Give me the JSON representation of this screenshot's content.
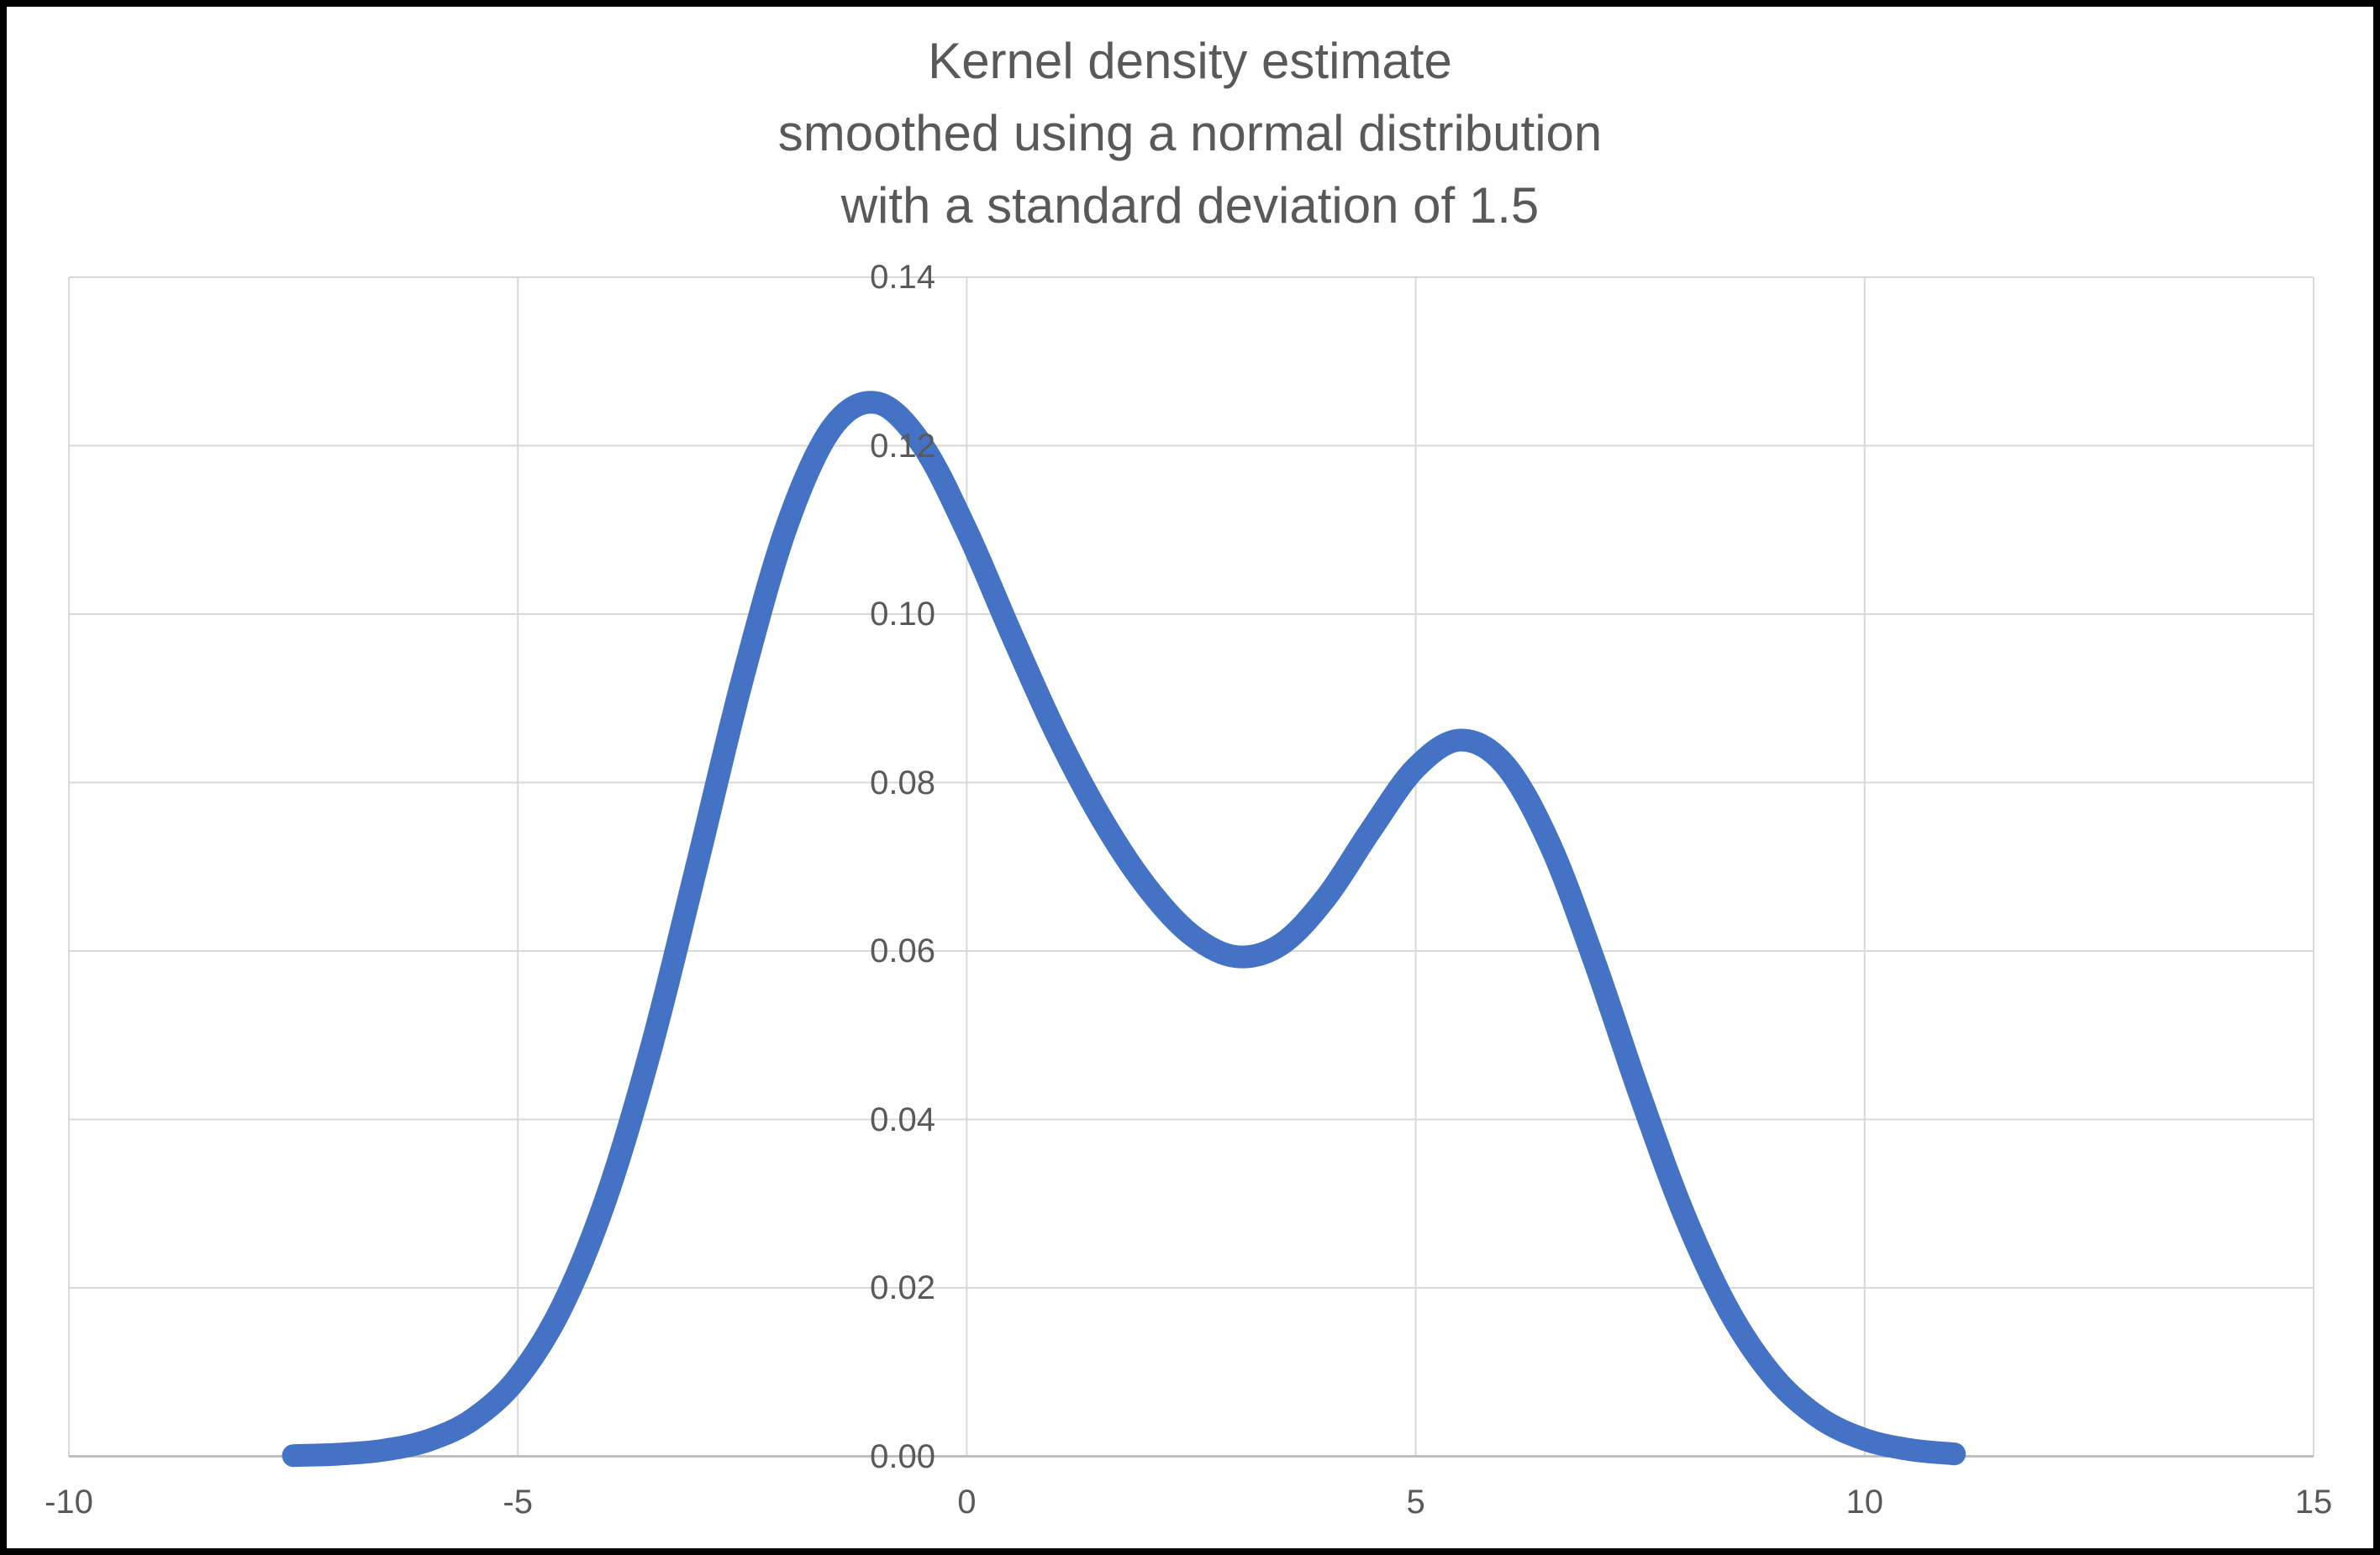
{
  "window": {
    "background_color": "#FFFFFF",
    "frame_color": "#000000"
  },
  "chart_data": {
    "type": "line",
    "title": "Kernel density estimate\nsmoothed using a normal distribution\nwith a standard deviation of 1.5",
    "title_color": "#595959",
    "smoothing": {
      "kernel": "normal distribution",
      "standard_deviation": 1.5
    },
    "x_axis": {
      "min": -10,
      "max": 15,
      "tick_values": [
        -10,
        -5,
        0,
        5,
        10,
        15
      ],
      "tick_labels": [
        "-10",
        "-5",
        "0",
        "5",
        "10",
        "15"
      ],
      "label_color": "#595959"
    },
    "y_axis": {
      "min": 0,
      "max": 0.14,
      "tick_values": [
        0,
        0.02,
        0.04,
        0.06,
        0.08,
        0.1,
        0.12,
        0.14
      ],
      "tick_labels": [
        "0.00",
        "0.02",
        "0.04",
        "0.06",
        "0.08",
        "0.10",
        "0.12",
        "0.14"
      ],
      "label_color": "#595959"
    },
    "grid": {
      "show": true,
      "gridline_color": "#D9D9D9",
      "axis_line_color": "#BFBFBF"
    },
    "legend": {
      "show": false
    },
    "key_features": {
      "left_peak": {
        "x": -1.0,
        "y": 0.125
      },
      "valley": {
        "x": 3.0,
        "y": 0.059
      },
      "right_peak": {
        "x": 5.5,
        "y": 0.085
      },
      "curve_start_x": -7.5,
      "curve_end_x": 11
    },
    "series": [
      {
        "name": "kernel-density-estimate",
        "color": "#4472C4",
        "stroke_width": 27,
        "x": [
          -7.5,
          -7,
          -6.5,
          -6,
          -5.5,
          -5,
          -4.5,
          -4,
          -3.5,
          -3,
          -2.5,
          -2,
          -1.5,
          -1,
          -0.5,
          0,
          0.5,
          1,
          1.5,
          2,
          2.5,
          3,
          3.5,
          4,
          4.5,
          5,
          5.5,
          6,
          6.5,
          7,
          7.5,
          8,
          8.5,
          9,
          9.5,
          10,
          10.5,
          11
        ],
        "y": [
          8e-05,
          0.00025,
          0.00072,
          0.00188,
          0.00441,
          0.00935,
          0.01795,
          0.03115,
          0.0491,
          0.07043,
          0.0922,
          0.11059,
          0.12213,
          0.12509,
          0.12014,
          0.10988,
          0.09758,
          0.08579,
          0.07572,
          0.06767,
          0.06193,
          0.05933,
          0.06078,
          0.06633,
          0.07435,
          0.08174,
          0.08504,
          0.08202,
          0.07253,
          0.05846,
          0.04282,
          0.02843,
          0.01708,
          0.00927,
          0.00454,
          0.002,
          0.0008,
          0.00028
        ]
      }
    ]
  }
}
